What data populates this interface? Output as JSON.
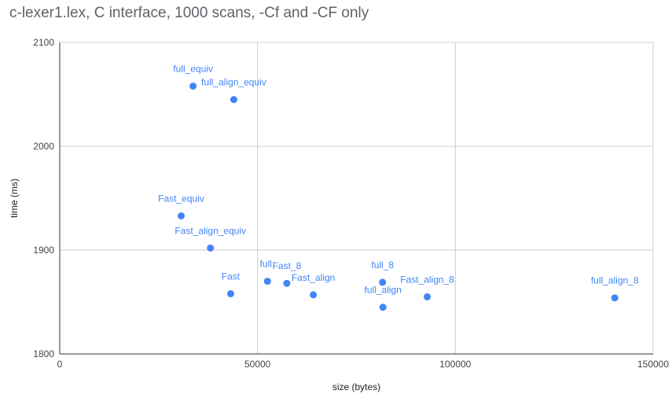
{
  "chart_data": {
    "type": "scatter",
    "title": "c-lexer1.lex, C interface, 1000 scans, -Cf and -CF only",
    "xlabel": "size (bytes)",
    "ylabel": "time (ms)",
    "xlim": [
      0,
      150000
    ],
    "ylim": [
      1800,
      2100
    ],
    "xticks": [
      0,
      50000,
      100000,
      150000
    ],
    "yticks": [
      1800,
      1900,
      2000,
      2100
    ],
    "grid": true,
    "legend": "none",
    "point_color": "#4285f4",
    "points": [
      {
        "label": "full_equiv",
        "x": 33700,
        "y": 2058
      },
      {
        "label": "full_align_equiv",
        "x": 44000,
        "y": 2045
      },
      {
        "label": "Fast_equiv",
        "x": 30700,
        "y": 1933
      },
      {
        "label": "Fast_align_equiv",
        "x": 38100,
        "y": 1902
      },
      {
        "label": "Fast",
        "x": 43200,
        "y": 1858
      },
      {
        "label": "full",
        "x": 52500,
        "y": 1870
      },
      {
        "label": "Fast_8",
        "x": 57400,
        "y": 1868
      },
      {
        "label": "Fast_align",
        "x": 64100,
        "y": 1857
      },
      {
        "label": "full_8",
        "x": 81600,
        "y": 1869
      },
      {
        "label": "full_align",
        "x": 81700,
        "y": 1845
      },
      {
        "label": "Fast_align_8",
        "x": 92900,
        "y": 1855
      },
      {
        "label": "full_align_8",
        "x": 140300,
        "y": 1854
      }
    ]
  }
}
